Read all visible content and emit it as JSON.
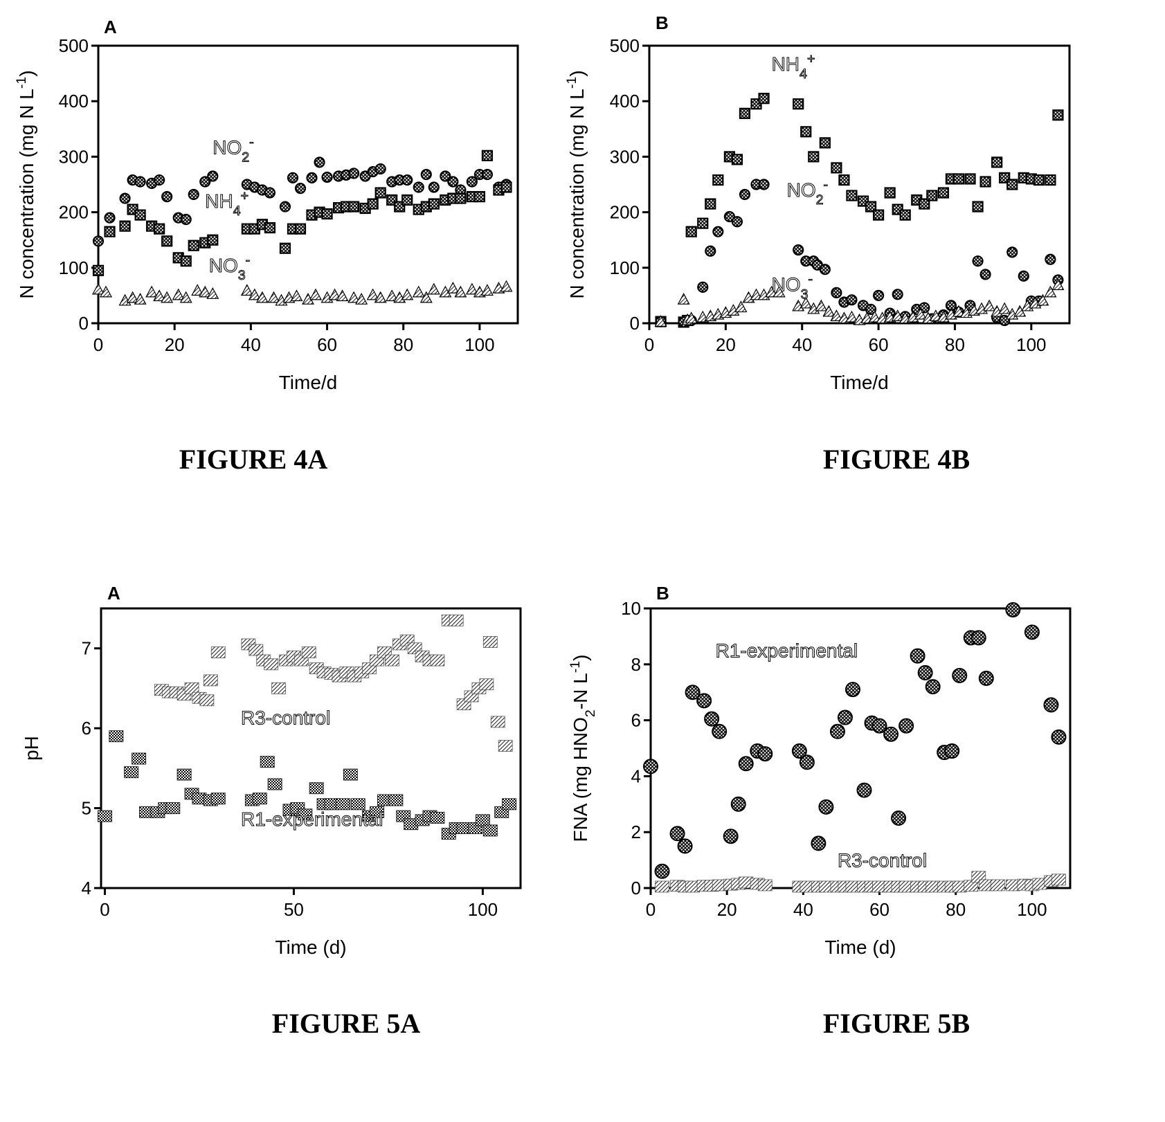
{
  "chart_data": [
    {
      "type": "scatter",
      "panel": "A",
      "caption": "FIGURE 4A",
      "xlabel": "Time/d",
      "ylabel": "N concentration (mg N L-1)",
      "ylabel_main": "N concentration (mg N L",
      "ylabel_sup": "-1",
      "ylabel_end": ")",
      "xlim": [
        0,
        110
      ],
      "ylim": [
        0,
        500
      ],
      "xticks": [
        0,
        20,
        40,
        60,
        80,
        100
      ],
      "yticks": [
        0,
        100,
        200,
        300,
        400,
        500
      ],
      "annotations": [
        {
          "main": "NO",
          "sub": "2",
          "sup": "-",
          "x": 30,
          "y": 305
        },
        {
          "main": "NH",
          "sub": "4",
          "sup": "+",
          "x": 28,
          "y": 208
        },
        {
          "main": "NO",
          "sub": "3",
          "sup": "-",
          "x": 29,
          "y": 92
        }
      ],
      "series": [
        {
          "name": "NO2-",
          "marker": "circle",
          "x": [
            0,
            3,
            7,
            9,
            11,
            14,
            16,
            18,
            21,
            23,
            25,
            28,
            30,
            39,
            41,
            43,
            45,
            49,
            51,
            53,
            56,
            58,
            60,
            63,
            65,
            67,
            70,
            72,
            74,
            77,
            79,
            81,
            84,
            86,
            88,
            91,
            93,
            95,
            98,
            100,
            102,
            105,
            107
          ],
          "y": [
            148,
            190,
            225,
            258,
            255,
            252,
            258,
            228,
            190,
            187,
            232,
            255,
            265,
            250,
            245,
            240,
            235,
            210,
            262,
            243,
            262,
            290,
            263,
            265,
            267,
            270,
            265,
            273,
            278,
            255,
            258,
            258,
            245,
            268,
            245,
            265,
            255,
            240,
            255,
            268,
            268,
            245,
            250
          ]
        },
        {
          "name": "NH4+",
          "marker": "square",
          "x": [
            0,
            3,
            7,
            9,
            11,
            14,
            16,
            18,
            21,
            23,
            25,
            28,
            30,
            39,
            41,
            43,
            45,
            49,
            51,
            53,
            56,
            58,
            60,
            63,
            65,
            67,
            70,
            72,
            74,
            77,
            79,
            81,
            84,
            86,
            88,
            91,
            93,
            95,
            98,
            100,
            102,
            105,
            107
          ],
          "y": [
            95,
            165,
            175,
            205,
            195,
            175,
            170,
            148,
            118,
            112,
            140,
            145,
            150,
            170,
            170,
            178,
            172,
            135,
            170,
            170,
            195,
            200,
            197,
            208,
            210,
            210,
            207,
            215,
            235,
            222,
            210,
            222,
            205,
            210,
            215,
            222,
            225,
            225,
            228,
            228,
            302,
            240,
            245
          ]
        },
        {
          "name": "NO3-",
          "marker": "triangle",
          "x": [
            0,
            2,
            7,
            9,
            11,
            14,
            16,
            18,
            21,
            23,
            26,
            28,
            30,
            39,
            41,
            43,
            46,
            48,
            50,
            52,
            55,
            57,
            60,
            62,
            64,
            67,
            69,
            72,
            74,
            77,
            79,
            81,
            84,
            86,
            88,
            91,
            93,
            95,
            98,
            100,
            102,
            105,
            107
          ],
          "y": [
            60,
            55,
            40,
            45,
            42,
            55,
            48,
            45,
            50,
            45,
            58,
            55,
            52,
            58,
            50,
            45,
            45,
            40,
            45,
            48,
            42,
            50,
            45,
            50,
            48,
            45,
            42,
            50,
            45,
            48,
            45,
            50,
            55,
            45,
            60,
            55,
            62,
            55,
            60,
            55,
            58,
            62,
            65
          ]
        }
      ]
    },
    {
      "type": "scatter",
      "panel": "B",
      "caption": "FIGURE 4B",
      "xlabel": "Time/d",
      "ylabel": "N concentration (mg N L-1)",
      "ylabel_main": "N concentration (mg N L",
      "ylabel_sup": "-1",
      "ylabel_end": ")",
      "xlim": [
        0,
        110
      ],
      "ylim": [
        0,
        500
      ],
      "xticks": [
        0,
        20,
        40,
        60,
        80,
        100
      ],
      "yticks": [
        0,
        100,
        200,
        300,
        400,
        500
      ],
      "annotations": [
        {
          "main": "NH",
          "sub": "4",
          "sup": "+",
          "x": 32,
          "y": 455
        },
        {
          "main": "NO",
          "sub": "2",
          "sup": "-",
          "x": 36,
          "y": 228
        },
        {
          "main": "NO",
          "sub": "3",
          "sup": "-",
          "x": 32,
          "y": 58
        }
      ],
      "series": [
        {
          "name": "NH4+",
          "marker": "square",
          "x": [
            3,
            9,
            10,
            11,
            14,
            16,
            18,
            21,
            23,
            25,
            28,
            30,
            39,
            41,
            43,
            46,
            49,
            51,
            53,
            56,
            58,
            60,
            63,
            65,
            67,
            70,
            72,
            74,
            77,
            79,
            81,
            84,
            86,
            88,
            91,
            93,
            95,
            98,
            100,
            102,
            105,
            107
          ],
          "y": [
            3,
            2,
            5,
            165,
            180,
            215,
            258,
            300,
            295,
            378,
            395,
            405,
            395,
            345,
            300,
            325,
            280,
            258,
            230,
            220,
            210,
            195,
            235,
            205,
            195,
            222,
            215,
            230,
            235,
            260,
            260,
            260,
            210,
            255,
            290,
            262,
            250,
            262,
            260,
            258,
            258,
            375
          ]
        },
        {
          "name": "NO2-",
          "marker": "circle",
          "x": [
            3,
            9,
            11,
            14,
            16,
            18,
            21,
            23,
            25,
            28,
            30,
            39,
            41,
            43,
            44,
            46,
            49,
            51,
            53,
            56,
            58,
            60,
            63,
            65,
            67,
            70,
            72,
            74,
            77,
            79,
            81,
            84,
            86,
            88,
            91,
            93,
            95,
            98,
            100,
            102,
            105,
            107
          ],
          "y": [
            3,
            2,
            5,
            65,
            130,
            165,
            192,
            183,
            232,
            250,
            250,
            132,
            112,
            112,
            105,
            97,
            55,
            38,
            42,
            32,
            25,
            50,
            18,
            52,
            12,
            25,
            28,
            8,
            15,
            32,
            20,
            32,
            112,
            88,
            10,
            5,
            128,
            85,
            40,
            40,
            115,
            78
          ]
        },
        {
          "name": "NO3-",
          "marker": "triangle",
          "x": [
            3,
            9,
            10,
            11,
            14,
            16,
            18,
            20,
            22,
            24,
            26,
            28,
            30,
            32,
            34,
            39,
            41,
            43,
            45,
            47,
            49,
            51,
            53,
            55,
            57,
            59,
            61,
            63,
            65,
            67,
            69,
            71,
            73,
            75,
            77,
            79,
            81,
            83,
            85,
            87,
            89,
            91,
            93,
            95,
            97,
            99,
            101,
            103,
            105,
            107
          ],
          "y": [
            2,
            42,
            5,
            8,
            10,
            12,
            15,
            18,
            22,
            28,
            45,
            50,
            50,
            55,
            55,
            30,
            35,
            25,
            30,
            20,
            12,
            8,
            10,
            5,
            8,
            10,
            8,
            10,
            12,
            8,
            10,
            15,
            8,
            12,
            10,
            15,
            20,
            18,
            22,
            25,
            30,
            20,
            25,
            15,
            20,
            30,
            35,
            40,
            55,
            68
          ]
        }
      ]
    },
    {
      "type": "scatter",
      "panel": "A",
      "caption": "FIGURE 5A",
      "xlabel": "Time (d)",
      "ylabel": "pH",
      "xlim": [
        -1,
        110
      ],
      "ylim": [
        4,
        7.5
      ],
      "xticks": [
        0,
        50,
        100
      ],
      "yticks": [
        4,
        5,
        6,
        7
      ],
      "annotations": [
        {
          "main": "R3-control",
          "x": 36,
          "y": 6.05
        },
        {
          "main": "R1-experimental",
          "x": 36,
          "y": 4.78
        }
      ],
      "series": [
        {
          "name": "R3-control",
          "marker": "hatched-square",
          "x": [
            15,
            17,
            19,
            21,
            23,
            25,
            27,
            28,
            30,
            38,
            40,
            42,
            44,
            46,
            48,
            50,
            52,
            54,
            56,
            58,
            60,
            62,
            64,
            66,
            68,
            70,
            72,
            74,
            76,
            78,
            80,
            82,
            84,
            86,
            88,
            91,
            93,
            95,
            97,
            99,
            101,
            102,
            104,
            106
          ],
          "y": [
            6.48,
            6.45,
            6.45,
            6.42,
            6.5,
            6.38,
            6.35,
            6.6,
            6.95,
            7.05,
            6.98,
            6.85,
            6.8,
            6.5,
            6.85,
            6.9,
            6.85,
            6.95,
            6.75,
            6.7,
            6.68,
            6.65,
            6.7,
            6.65,
            6.7,
            6.75,
            6.85,
            6.95,
            6.85,
            7.05,
            7.1,
            7.0,
            6.9,
            6.85,
            6.85,
            7.35,
            7.35,
            6.3,
            6.4,
            6.5,
            6.55,
            7.08,
            6.08,
            5.78
          ]
        },
        {
          "name": "R1-experimental",
          "marker": "dense-square",
          "x": [
            0,
            3,
            7,
            9,
            11,
            14,
            16,
            18,
            21,
            23,
            25,
            28,
            30,
            39,
            41,
            43,
            45,
            49,
            51,
            53,
            56,
            58,
            60,
            63,
            65,
            67,
            70,
            72,
            74,
            77,
            79,
            81,
            84,
            86,
            88,
            91,
            93,
            95,
            98,
            100,
            102,
            105,
            107
          ],
          "y": [
            4.9,
            5.9,
            5.45,
            5.62,
            4.95,
            4.95,
            5.0,
            5.0,
            5.42,
            5.18,
            5.12,
            5.1,
            5.12,
            5.1,
            5.12,
            5.58,
            5.3,
            4.98,
            5.0,
            4.92,
            5.25,
            5.05,
            5.05,
            5.05,
            5.42,
            5.05,
            4.9,
            4.95,
            5.1,
            5.1,
            4.9,
            4.8,
            4.85,
            4.9,
            4.88,
            4.68,
            4.75,
            4.75,
            4.75,
            4.85,
            4.72,
            4.95,
            5.05
          ]
        }
      ]
    },
    {
      "type": "scatter",
      "panel": "B",
      "caption": "FIGURE 5B",
      "xlabel": "Time (d)",
      "ylabel": "FNA (mg HNO2-N L-1)",
      "ylabel_main": "FNA (mg HNO",
      "ylabel_sub": "2",
      "ylabel_mid": "-N L",
      "ylabel_sup": "-1",
      "ylabel_end": ")",
      "xlim": [
        0,
        110
      ],
      "ylim": [
        0,
        10
      ],
      "xticks": [
        0,
        20,
        40,
        60,
        80,
        100
      ],
      "yticks": [
        0,
        2,
        4,
        6,
        8,
        10
      ],
      "annotations": [
        {
          "main": "R1-experimental",
          "x": 17,
          "y": 8.25
        },
        {
          "main": "R3-control",
          "x": 49,
          "y": 0.75
        }
      ],
      "series": [
        {
          "name": "R1-experimental",
          "marker": "hatched-circle",
          "x": [
            0,
            3,
            7,
            9,
            11,
            14,
            16,
            18,
            21,
            23,
            25,
            28,
            30,
            39,
            41,
            44,
            46,
            49,
            51,
            53,
            56,
            58,
            60,
            63,
            65,
            67,
            70,
            72,
            74,
            77,
            79,
            81,
            84,
            86,
            88,
            95,
            100,
            105,
            107
          ],
          "y": [
            4.35,
            0.6,
            1.95,
            1.5,
            7.0,
            6.7,
            6.05,
            5.6,
            1.85,
            3.0,
            4.45,
            4.9,
            4.8,
            4.9,
            4.5,
            1.6,
            2.9,
            5.6,
            6.1,
            7.1,
            3.5,
            5.9,
            5.8,
            5.5,
            2.5,
            5.8,
            8.3,
            7.7,
            7.2,
            4.85,
            4.9,
            7.6,
            8.95,
            8.95,
            7.5,
            9.95,
            9.15,
            6.55,
            5.4
          ]
        },
        {
          "name": "R3-control",
          "marker": "hatched-square",
          "x": [
            3,
            7,
            9,
            11,
            14,
            16,
            18,
            21,
            23,
            25,
            28,
            30,
            39,
            41,
            44,
            46,
            49,
            51,
            53,
            56,
            58,
            60,
            63,
            65,
            67,
            70,
            72,
            74,
            77,
            79,
            81,
            84,
            86,
            88,
            91,
            95,
            98,
            100,
            102,
            105,
            107
          ],
          "y": [
            0.05,
            0.08,
            0.05,
            0.05,
            0.08,
            0.08,
            0.1,
            0.12,
            0.15,
            0.2,
            0.15,
            0.1,
            0.05,
            0.05,
            0.05,
            0.05,
            0.05,
            0.05,
            0.05,
            0.05,
            0.05,
            0.05,
            0.05,
            0.05,
            0.05,
            0.05,
            0.05,
            0.05,
            0.05,
            0.05,
            0.05,
            0.08,
            0.4,
            0.1,
            0.1,
            0.1,
            0.12,
            0.1,
            0.15,
            0.25,
            0.3
          ]
        }
      ]
    }
  ]
}
